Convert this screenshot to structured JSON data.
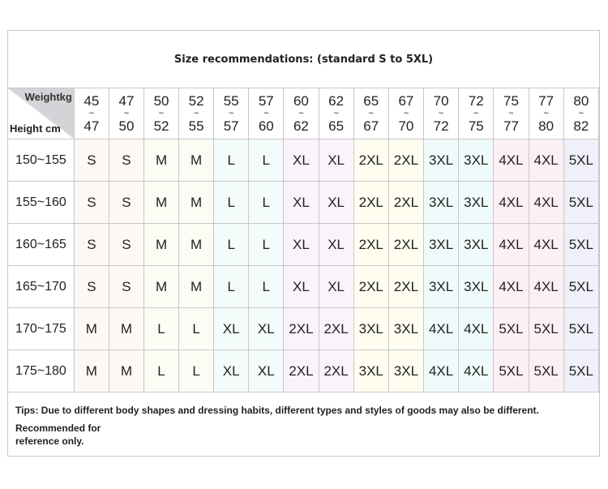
{
  "title": "Size recommendations: (standard S to 5XL)",
  "corner": {
    "weight_label": "Weightkg",
    "height_label": "Height cm"
  },
  "weights": [
    [
      "45",
      "47"
    ],
    [
      "47",
      "50"
    ],
    [
      "50",
      "52"
    ],
    [
      "52",
      "55"
    ],
    [
      "55",
      "57"
    ],
    [
      "57",
      "60"
    ],
    [
      "60",
      "62"
    ],
    [
      "62",
      "65"
    ],
    [
      "65",
      "67"
    ],
    [
      "67",
      "70"
    ],
    [
      "70",
      "72"
    ],
    [
      "72",
      "75"
    ],
    [
      "75",
      "77"
    ],
    [
      "77",
      "80"
    ],
    [
      "80",
      "82"
    ]
  ],
  "rows": [
    {
      "height": "150~155",
      "sizes": [
        "S",
        "S",
        "M",
        "M",
        "L",
        "L",
        "XL",
        "XL",
        "2XL",
        "2XL",
        "3XL",
        "3XL",
        "4XL",
        "4XL",
        "5XL"
      ]
    },
    {
      "height": "155~160",
      "sizes": [
        "S",
        "S",
        "M",
        "M",
        "L",
        "L",
        "XL",
        "XL",
        "2XL",
        "2XL",
        "3XL",
        "3XL",
        "4XL",
        "4XL",
        "5XL"
      ]
    },
    {
      "height": "160~165",
      "sizes": [
        "S",
        "S",
        "M",
        "M",
        "L",
        "L",
        "XL",
        "XL",
        "2XL",
        "2XL",
        "3XL",
        "3XL",
        "4XL",
        "4XL",
        "5XL"
      ]
    },
    {
      "height": "165~170",
      "sizes": [
        "S",
        "S",
        "M",
        "M",
        "L",
        "L",
        "XL",
        "XL",
        "2XL",
        "2XL",
        "3XL",
        "3XL",
        "4XL",
        "4XL",
        "5XL"
      ]
    },
    {
      "height": "170~175",
      "sizes": [
        "M",
        "M",
        "L",
        "L",
        "XL",
        "XL",
        "2XL",
        "2XL",
        "3XL",
        "3XL",
        "4XL",
        "4XL",
        "5XL",
        "5XL",
        "5XL"
      ]
    },
    {
      "height": "175~180",
      "sizes": [
        "M",
        "M",
        "L",
        "L",
        "XL",
        "XL",
        "2XL",
        "2XL",
        "3XL",
        "3XL",
        "4XL",
        "4XL",
        "5XL",
        "5XL",
        "5XL"
      ]
    }
  ],
  "column_colors": [
    "#fdf8f4",
    "#fdf8f4",
    "#fbfcf3",
    "#fbfcf3",
    "#f3fbfb",
    "#f3fbfb",
    "#faf3fb",
    "#faf3fb",
    "#fefdf0",
    "#fefdf0",
    "#effbfa",
    "#effbfa",
    "#fdf0f4",
    "#fdf0f4",
    "#f0f0fa"
  ],
  "tips": "Tips: Due to different body shapes and dressing habits, different types and styles of goods may also be different.",
  "reference": "Recommended for reference only."
}
